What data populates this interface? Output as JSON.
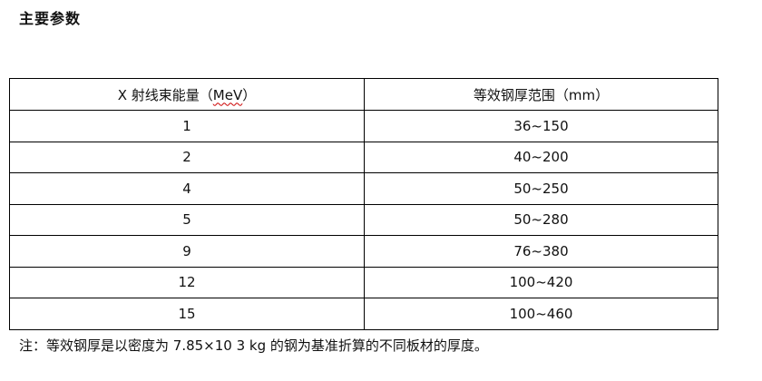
{
  "title": "主要参数",
  "table": {
    "headers": {
      "col1_prefix": "X 射线束能量（",
      "col1_unit": "MeV",
      "col1_suffix": "）",
      "col2": "等效钢厚范围（mm）"
    },
    "rows": [
      {
        "energy": "1",
        "range": "36~150"
      },
      {
        "energy": "2",
        "range": "40~200"
      },
      {
        "energy": "4",
        "range": "50~250"
      },
      {
        "energy": "5",
        "range": "50~280"
      },
      {
        "energy": "9",
        "range": "76~380"
      },
      {
        "energy": "12",
        "range": "100~420"
      },
      {
        "energy": "15",
        "range": "100~460"
      }
    ]
  },
  "note": "注：等效钢厚是以密度为 7.85×10 3 kg 的钢为基准折算的不同板材的厚度。"
}
